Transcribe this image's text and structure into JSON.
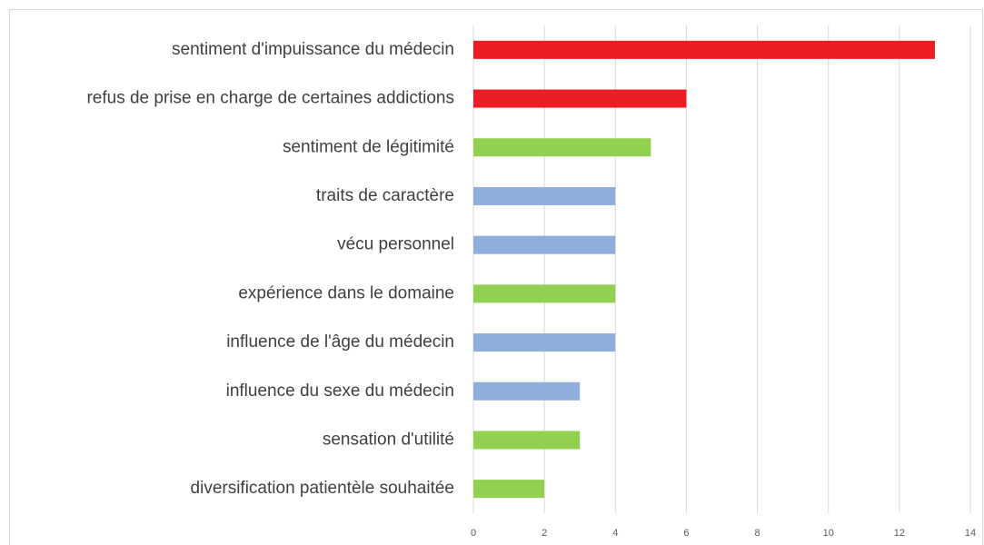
{
  "chart_data": {
    "type": "bar",
    "orientation": "horizontal",
    "categories": [
      "sentiment d'impuissance du médecin",
      "refus de prise en charge de certaines addictions",
      "sentiment de légitimité",
      "traits de caractère",
      "vécu personnel",
      "expérience dans le domaine",
      "influence de l'âge du médecin",
      "influence du sexe du médecin",
      "sensation d'utilité",
      "diversification patientèle souhaitée"
    ],
    "values": [
      13,
      6,
      5,
      4,
      4,
      4,
      4,
      3,
      3,
      2
    ],
    "colors": [
      "#ee1c25",
      "#ee1c25",
      "#92d050",
      "#8eaedb",
      "#8eaedb",
      "#92d050",
      "#8eaedb",
      "#8eaedb",
      "#92d050",
      "#92d050"
    ],
    "xlim": [
      0,
      14
    ],
    "xticks": [
      0,
      2,
      4,
      6,
      8,
      10,
      12,
      14
    ],
    "grid": true
  }
}
